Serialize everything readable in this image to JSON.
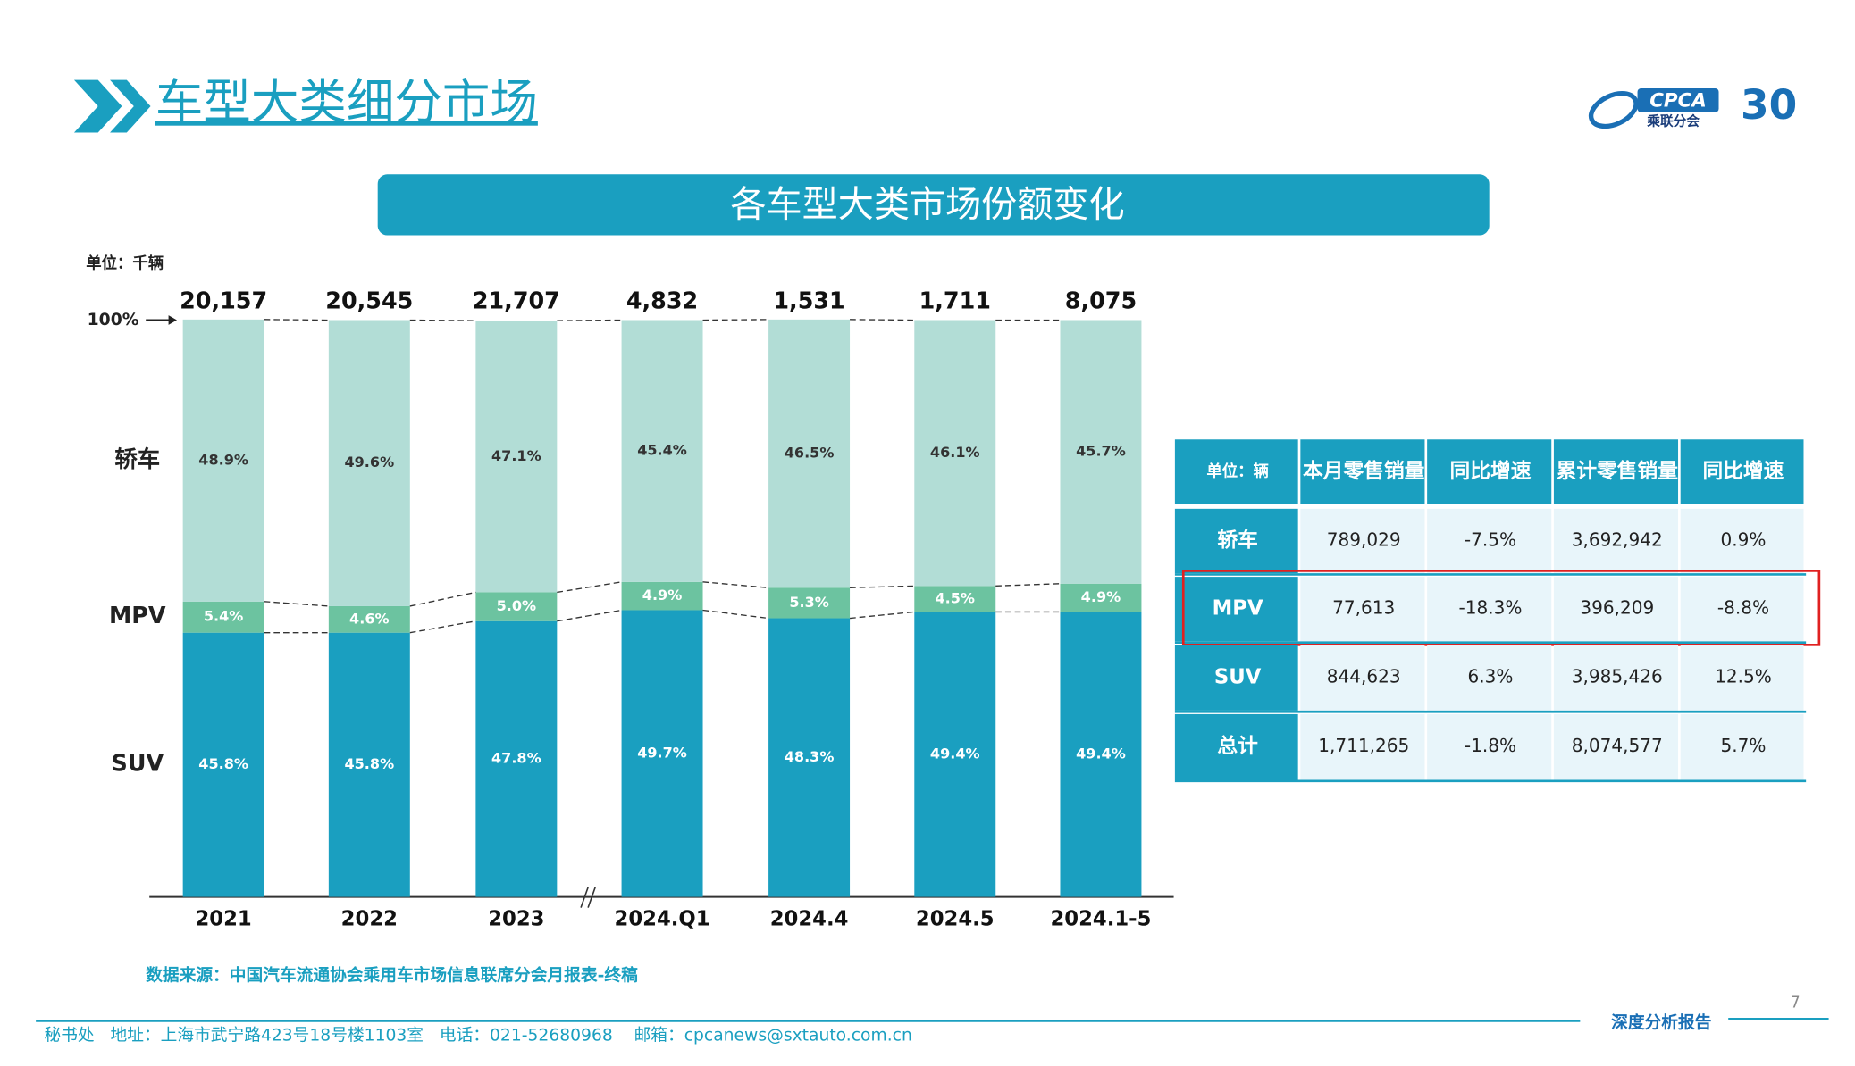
{
  "header": {
    "title": "车型大类细分市场",
    "logo": {
      "name": "CPCA",
      "subtitle": "乘联分会",
      "anniversary": "30"
    }
  },
  "chart_data": {
    "type": "bar",
    "stacked": true,
    "title": "各车型大类市场份额变化",
    "unit": "单位：千辆",
    "categories": [
      "2021",
      "2022",
      "2023",
      "2024.Q1",
      "2024.4",
      "2024.5",
      "2024.1-5"
    ],
    "series": [
      {
        "name": "SUV",
        "color": "#1a9fc0",
        "values": [
          45.8,
          45.8,
          47.8,
          49.7,
          48.3,
          49.4,
          49.4
        ],
        "value_labels": [
          "45.8%",
          "45.8%",
          "47.8%",
          "49.7%",
          "48.3%",
          "49.4%",
          "49.4%"
        ]
      },
      {
        "name": "MPV",
        "color": "#6cc3a0",
        "values": [
          5.4,
          4.6,
          5.0,
          4.9,
          5.3,
          4.5,
          4.9
        ],
        "value_labels": [
          "5.4%",
          "4.6%",
          "5.0%",
          "4.9%",
          "5.3%",
          "4.5%",
          "4.9%"
        ]
      },
      {
        "name": "轿车",
        "color": "#b2ddd6",
        "values": [
          48.9,
          49.6,
          47.1,
          45.4,
          46.5,
          46.1,
          45.7
        ],
        "value_labels": [
          "48.9%",
          "49.6%",
          "47.1%",
          "45.4%",
          "46.5%",
          "46.1%",
          "45.7%"
        ]
      }
    ],
    "totals": {
      "values": [
        20157,
        20545,
        21707,
        4832,
        1531,
        1711,
        8075
      ],
      "value_labels": [
        "20,157",
        "20,545",
        "21,707",
        "4,832",
        "1,531",
        "1,711",
        "8,075"
      ]
    },
    "ylim": [
      0,
      100
    ],
    "yticks": [
      {
        "value": 100,
        "label": "100%"
      }
    ],
    "source": "数据来源：中国汽车流通协会乘用车市场信息联席分会月报表-终稿"
  },
  "table": {
    "header": [
      "单位：辆",
      "本月零售销量",
      "同比增速",
      "累计零售销量",
      "同比增速"
    ],
    "rows": [
      [
        "轿车",
        "789,029",
        "-7.5%",
        "3,692,942",
        "0.9%"
      ],
      [
        "MPV",
        "77,613",
        "-18.3%",
        "396,209",
        "-8.8%"
      ],
      [
        "SUV",
        "844,623",
        "6.3%",
        "3,985,426",
        "12.5%"
      ],
      [
        "总计",
        "1,711,265",
        "-1.8%",
        "8,074,577",
        "5.7%"
      ]
    ],
    "highlighted_row": "MPV"
  },
  "footer": {
    "address": "秘书处   地址：上海市武宁路423号18号楼1103室   电话：021-52680968    邮箱：cpcanews@sxtauto.com.cn",
    "tagline": "深度分析报告",
    "page": "7"
  }
}
